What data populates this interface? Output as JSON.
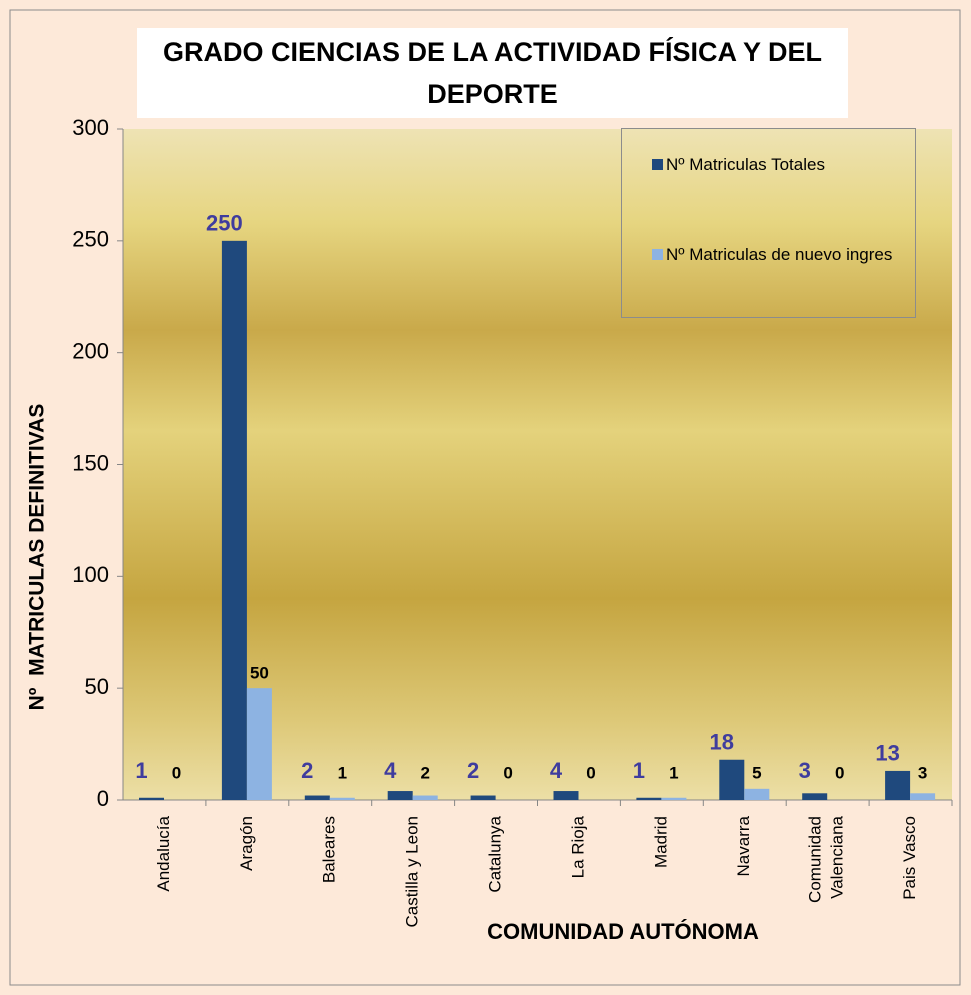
{
  "chart_data": {
    "type": "bar",
    "title": "GRADO CIENCIAS DE LA ACTIVIDAD FÍSICA Y DEL DEPORTE",
    "x_label": "COMUNIDAD AUTÓNOMA",
    "y_label": "Nº  MATRICULAS DEFINITIVAS",
    "categories": [
      "Andalucía",
      "Aragón",
      "Baleares",
      "Castilla y Leon",
      "Catalunya",
      "La Rioja",
      "Madrid",
      "Navarra",
      "Comunidad Valenciana",
      "Pais Vasco"
    ],
    "series": [
      {
        "name": "Nº Matriculas Totales",
        "color": "#1f497d",
        "values": [
          1,
          250,
          2,
          4,
          2,
          4,
          1,
          18,
          3,
          13
        ]
      },
      {
        "name": "Nº Matriculas de nuevo ingres",
        "color": "#8db3e2",
        "values": [
          0,
          50,
          1,
          2,
          0,
          0,
          1,
          5,
          0,
          3
        ]
      }
    ],
    "ylim": [
      0,
      300
    ],
    "yticks": [
      0,
      50,
      100,
      150,
      200,
      250,
      300
    ],
    "grid": false,
    "legend": "top-right"
  }
}
